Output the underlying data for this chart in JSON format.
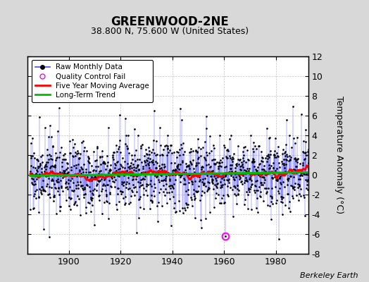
{
  "title": "GREENWOOD-2NE",
  "subtitle": "38.800 N, 75.600 W (United States)",
  "ylabel": "Temperature Anomaly (°C)",
  "credit": "Berkeley Earth",
  "ylim": [
    -8,
    12
  ],
  "yticks": [
    -8,
    -6,
    -4,
    -2,
    0,
    2,
    4,
    6,
    8,
    10,
    12
  ],
  "xticks": [
    1900,
    1920,
    1940,
    1960,
    1980
  ],
  "year_start": 1885,
  "year_end": 1992,
  "bg_color": "#d8d8d8",
  "plot_bg_color": "#ffffff",
  "raw_color": "#4444ff",
  "ma_color": "#ff0000",
  "trend_color": "#00bb00",
  "qc_color": "#ff00ff",
  "qc_year": 1960,
  "qc_value": -6.2,
  "seed": 17,
  "noise_std": 1.8,
  "ma_window": 60,
  "trend_slope": 0.003
}
